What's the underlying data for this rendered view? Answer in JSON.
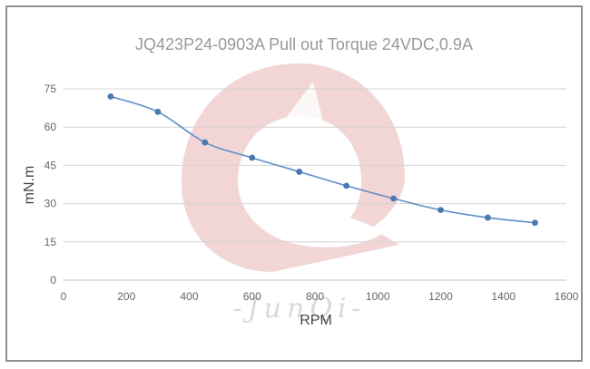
{
  "chart_data": {
    "type": "line",
    "title": "JQ423P24-0903A Pull out Torque 24VDC,0.9A",
    "xlabel": "RPM",
    "ylabel": "mN.m",
    "xlim": [
      0,
      1600
    ],
    "ylim": [
      0,
      75
    ],
    "xticks": [
      0,
      200,
      400,
      600,
      800,
      1000,
      1200,
      1400,
      1600
    ],
    "yticks": [
      0,
      15,
      30,
      45,
      60,
      75
    ],
    "grid": "horizontal",
    "series": [
      {
        "x": [
          150,
          300,
          450,
          600,
          750,
          900,
          1050,
          1200,
          1350,
          1500
        ],
        "values": [
          72,
          66,
          54,
          48,
          42.5,
          37,
          32,
          27.5,
          24.5,
          22.5
        ]
      }
    ],
    "colors": {
      "line": "#5b8fc7",
      "marker": "#4a79b2",
      "grid": "#d4d4d4",
      "watermark": "#e8b4b4"
    }
  },
  "watermark": {
    "text": "-JunQi-"
  }
}
